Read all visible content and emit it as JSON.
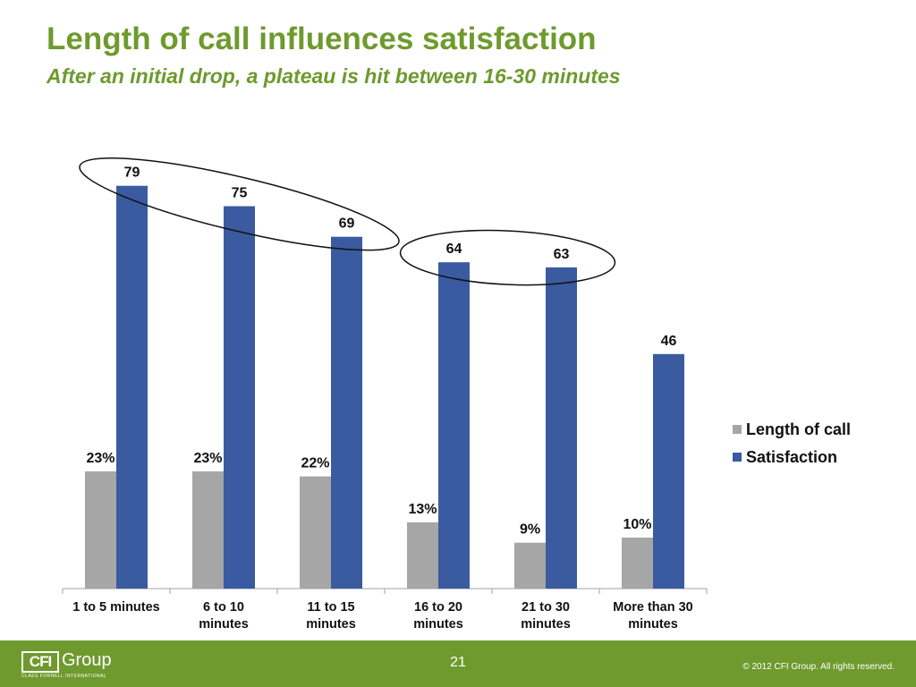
{
  "slide": {
    "title": "Length of call influences satisfaction",
    "subtitle": "After an initial drop, a plateau is hit between 16-30 minutes"
  },
  "chart_data": {
    "type": "bar",
    "categories": [
      [
        "1 to 5 minutes"
      ],
      [
        "6 to 10",
        "minutes"
      ],
      [
        "11 to 15",
        "minutes"
      ],
      [
        "16 to 20",
        "minutes"
      ],
      [
        "21 to 30",
        "minutes"
      ],
      [
        "More than 30",
        "minutes"
      ]
    ],
    "series": [
      {
        "name": "Length of call",
        "values": [
          23,
          23,
          22,
          13,
          9,
          10
        ],
        "labels": [
          "23%",
          "23%",
          "22%",
          "13%",
          "9%",
          "10%"
        ],
        "color": "#a6a6a6"
      },
      {
        "name": "Satisfaction",
        "values": [
          79,
          75,
          69,
          64,
          63,
          46
        ],
        "labels": [
          "79",
          "75",
          "69",
          "64",
          "63",
          "46"
        ],
        "color": "#3a5ba0"
      }
    ],
    "ylim": [
      0,
      90
    ],
    "legend": "right",
    "grid": false,
    "highlights": [
      {
        "categories": [
          0,
          2
        ],
        "series": "Satisfaction"
      },
      {
        "categories": [
          3,
          4
        ],
        "series": "Satisfaction"
      }
    ]
  },
  "footer": {
    "logo_box": "CFI",
    "logo_word": "Group",
    "logo_tagline": "CLAES FORNELL INTERNATIONAL",
    "page_number": "21",
    "copyright": "© 2012 CFI Group. All rights reserved."
  }
}
